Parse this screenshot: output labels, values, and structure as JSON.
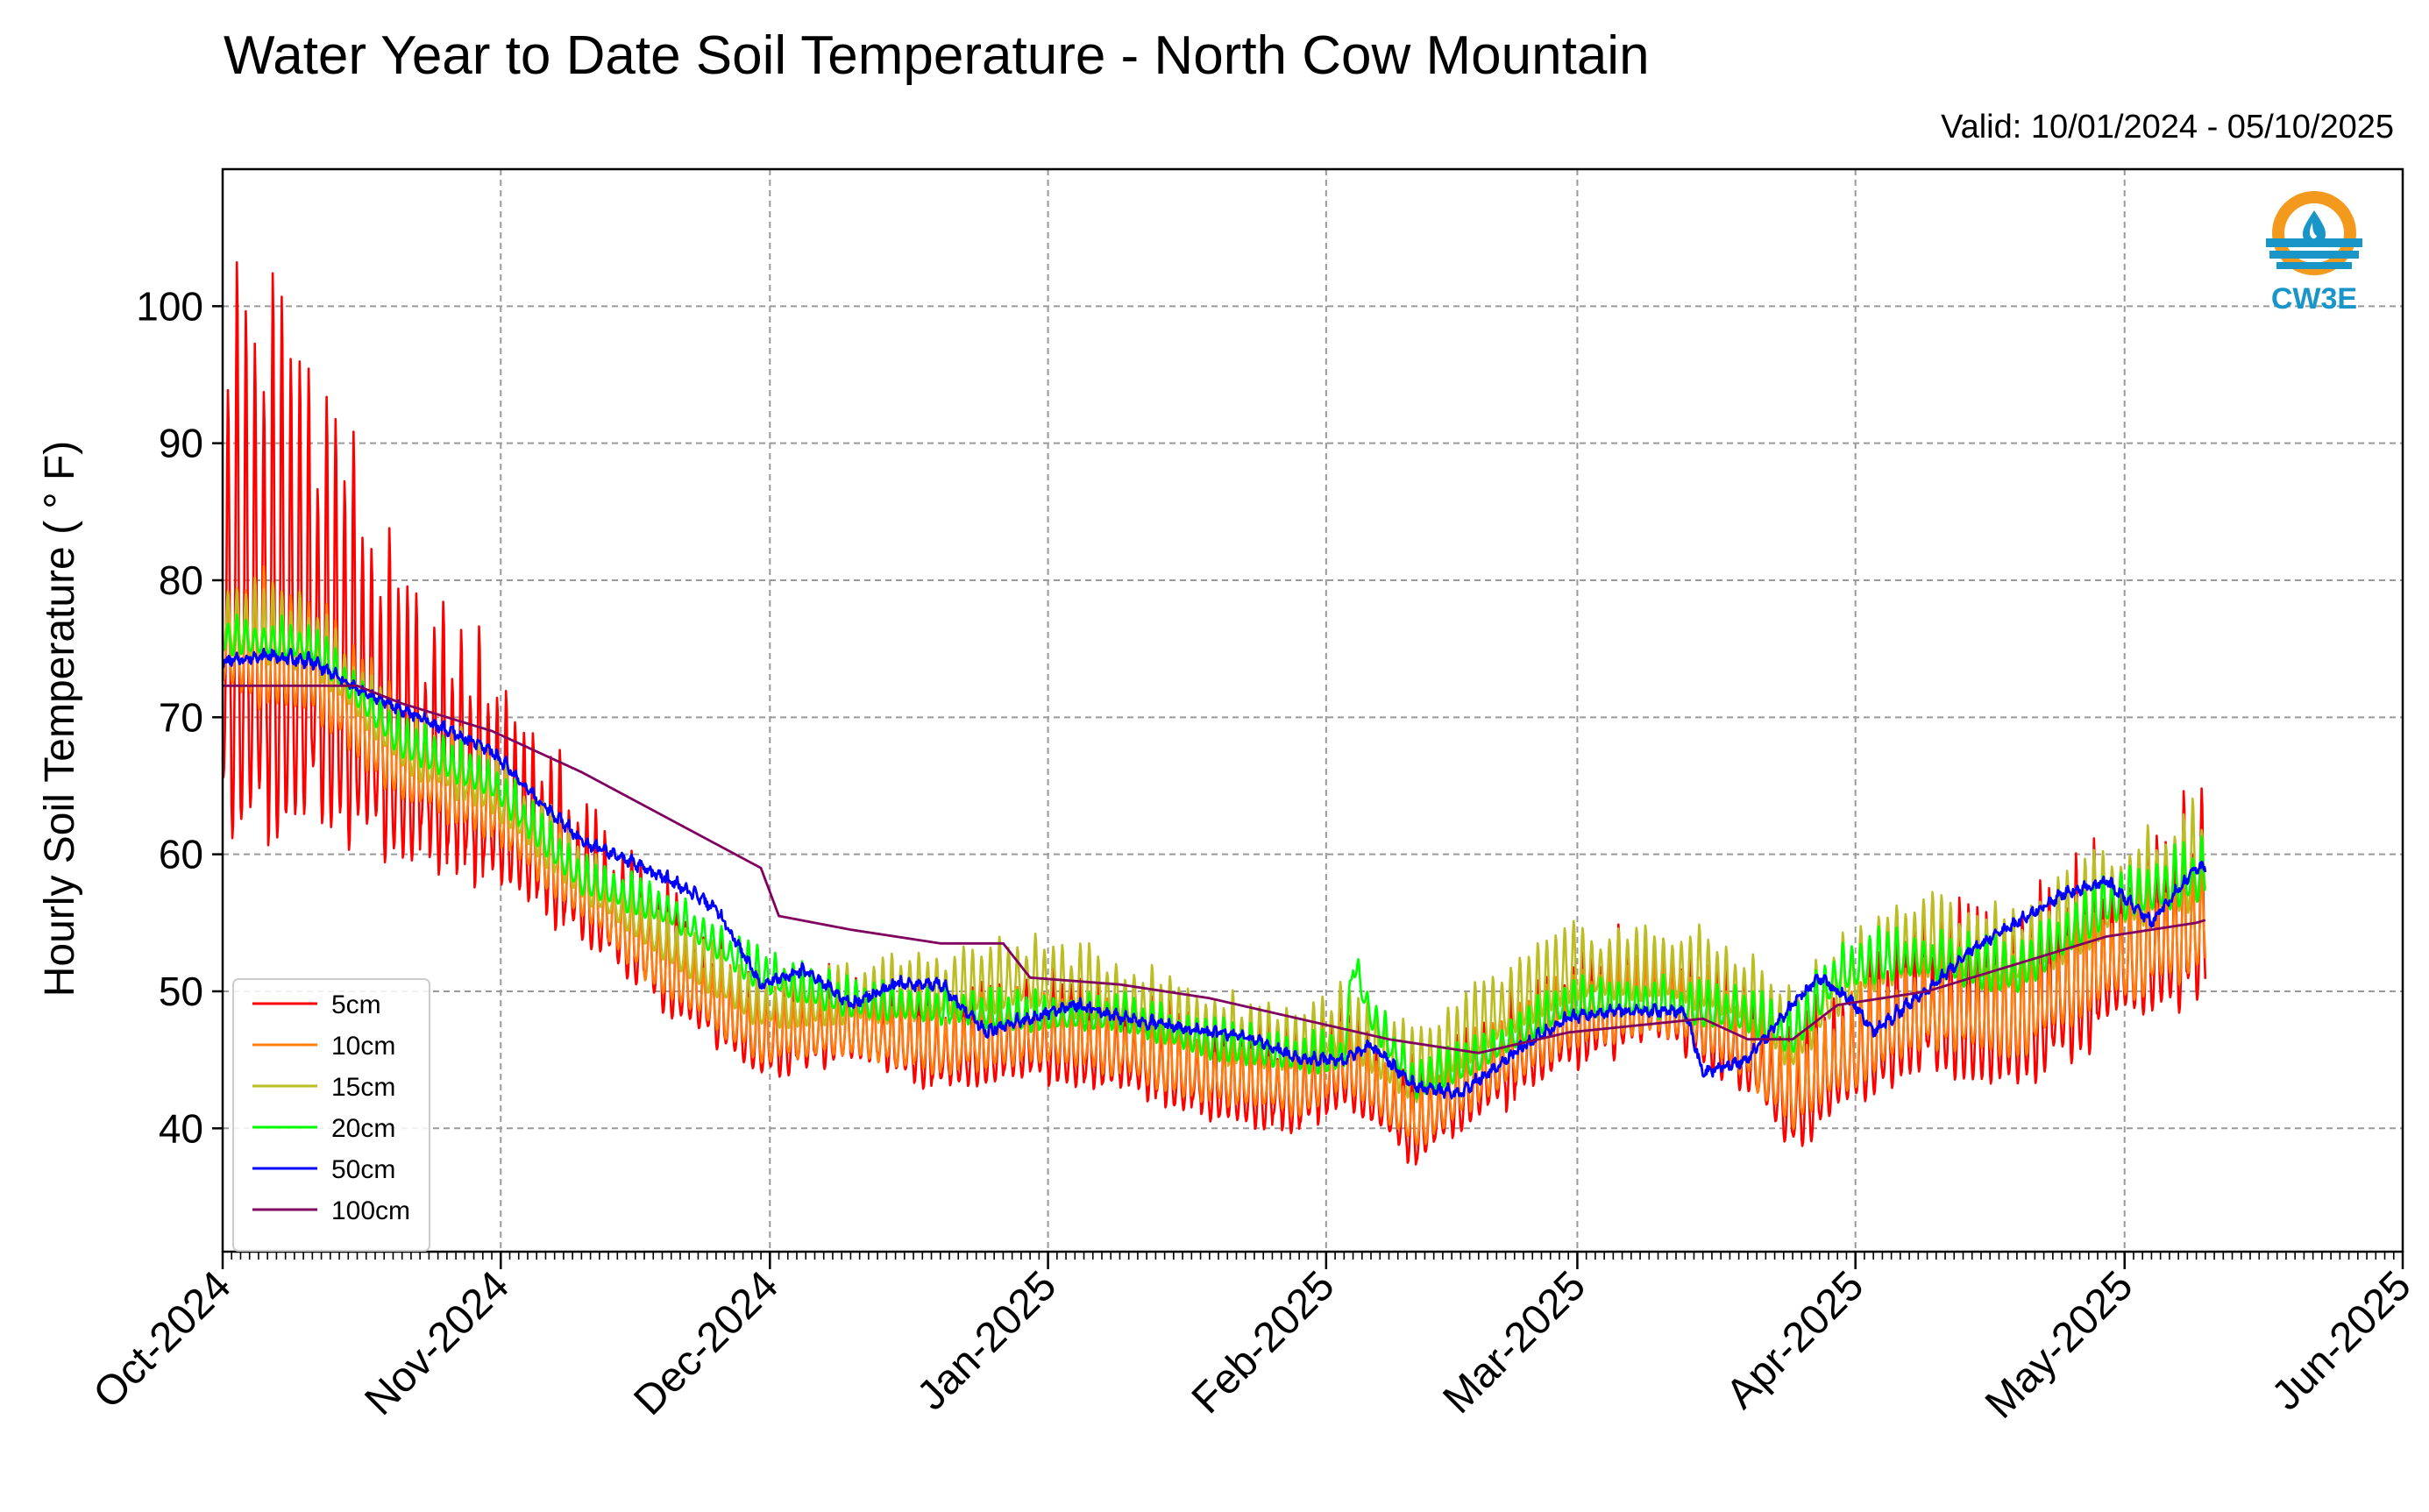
{
  "title": "Water Year to Date Soil Temperature - North Cow Mountain",
  "valid": "Valid: 10/01/2024 - 05/10/2025",
  "logo_text": "CW3E",
  "colors": {
    "background": "#ffffff",
    "grid": "#9a9a9a",
    "axis": "#000000",
    "logo_orange": "#f39a1e",
    "logo_blue": "#1a95c8"
  },
  "chart_data": {
    "type": "line",
    "title": "Water Year to Date Soil Temperature - North Cow Mountain",
    "subtitle": "Valid: 10/01/2024 - 05/10/2025",
    "xlabel": "",
    "ylabel": "Hourly Soil Temperature ( ° F)",
    "xlim": [
      "2024-10-01",
      "2025-06-01"
    ],
    "ylim": [
      31,
      110
    ],
    "x_ticks": [
      "2024-10-01",
      "2024-11-01",
      "2024-12-01",
      "2025-01-01",
      "2025-02-01",
      "2025-03-01",
      "2025-04-01",
      "2025-05-01",
      "2025-06-01"
    ],
    "x_tick_labels": [
      "Oct-2024",
      "Nov-2024",
      "Dec-2024",
      "Jan-2025",
      "Feb-2025",
      "Mar-2025",
      "Apr-2025",
      "May-2025",
      "Jun-2025"
    ],
    "y_ticks": [
      40,
      50,
      60,
      70,
      80,
      90,
      100
    ],
    "grid": true,
    "legend_position": "lower-left",
    "data_end": "2025-05-10",
    "series": [
      {
        "name": "5cm",
        "color": "#ff0000",
        "mean": [
          [
            0,
            74.5
          ],
          [
            10,
            73
          ],
          [
            20,
            66
          ],
          [
            30,
            63
          ],
          [
            40,
            57
          ],
          [
            50,
            51
          ],
          [
            60,
            46
          ],
          [
            70,
            47
          ],
          [
            80,
            45
          ],
          [
            90,
            46
          ],
          [
            100,
            45
          ],
          [
            110,
            43
          ],
          [
            120,
            42
          ],
          [
            125,
            44
          ],
          [
            133,
            39.5
          ],
          [
            140,
            43
          ],
          [
            150,
            47
          ],
          [
            160,
            49
          ],
          [
            165,
            47
          ],
          [
            170,
            45
          ],
          [
            175,
            41
          ],
          [
            180,
            44
          ],
          [
            185,
            46
          ],
          [
            190,
            48
          ],
          [
            200,
            47
          ],
          [
            210,
            51
          ],
          [
            220,
            54
          ],
          [
            230,
            61
          ],
          [
            240,
            64
          ]
        ],
        "amp": [
          [
            0,
            30
          ],
          [
            10,
            26
          ],
          [
            20,
            13
          ],
          [
            30,
            12
          ],
          [
            40,
            7
          ],
          [
            50,
            6
          ],
          [
            60,
            5
          ],
          [
            70,
            4.5
          ],
          [
            80,
            5
          ],
          [
            90,
            5.5
          ],
          [
            100,
            5
          ],
          [
            110,
            5
          ],
          [
            120,
            5
          ],
          [
            130,
            5
          ],
          [
            140,
            6
          ],
          [
            150,
            6
          ],
          [
            160,
            6
          ],
          [
            170,
            5
          ],
          [
            180,
            7
          ],
          [
            190,
            8
          ],
          [
            200,
            9
          ],
          [
            210,
            10
          ],
          [
            220,
            10
          ],
          [
            230,
            11
          ],
          [
            240,
            14
          ]
        ]
      },
      {
        "name": "10cm",
        "color": "#ff7f0e",
        "mean": [
          [
            0,
            74.5
          ],
          [
            10,
            73
          ],
          [
            20,
            66
          ],
          [
            30,
            63
          ],
          [
            40,
            57
          ],
          [
            50,
            51
          ],
          [
            60,
            46.5
          ],
          [
            70,
            47
          ],
          [
            80,
            45.5
          ],
          [
            90,
            46.5
          ],
          [
            100,
            45.5
          ],
          [
            110,
            43.5
          ],
          [
            120,
            42.5
          ],
          [
            125,
            44.5
          ],
          [
            133,
            40
          ],
          [
            140,
            43.5
          ],
          [
            150,
            47.5
          ],
          [
            160,
            49
          ],
          [
            165,
            47.5
          ],
          [
            170,
            45.5
          ],
          [
            175,
            42
          ],
          [
            180,
            44.5
          ],
          [
            185,
            46.5
          ],
          [
            190,
            48
          ],
          [
            200,
            47.5
          ],
          [
            210,
            51.5
          ],
          [
            220,
            54
          ],
          [
            230,
            60.5
          ],
          [
            240,
            63.5
          ]
        ],
        "amp": [
          [
            0,
            7
          ],
          [
            20,
            5
          ],
          [
            40,
            4
          ],
          [
            60,
            3.5
          ],
          [
            100,
            3.5
          ],
          [
            140,
            4
          ],
          [
            180,
            4.5
          ],
          [
            200,
            5
          ],
          [
            220,
            6
          ],
          [
            240,
            7
          ]
        ]
      },
      {
        "name": "15cm",
        "color": "#bcbd22",
        "mean": [
          [
            0,
            76.5
          ],
          [
            10,
            75
          ],
          [
            20,
            67.5
          ],
          [
            30,
            64.5
          ],
          [
            40,
            58
          ],
          [
            50,
            53
          ],
          [
            60,
            48.5
          ],
          [
            70,
            49
          ],
          [
            80,
            49.5
          ],
          [
            90,
            50.5
          ],
          [
            100,
            49
          ],
          [
            110,
            46.5
          ],
          [
            120,
            45.5
          ],
          [
            125,
            47
          ],
          [
            133,
            43.5
          ],
          [
            140,
            47
          ],
          [
            150,
            51
          ],
          [
            160,
            51
          ],
          [
            165,
            50.5
          ],
          [
            170,
            49
          ],
          [
            175,
            46
          ],
          [
            180,
            50
          ],
          [
            185,
            52
          ],
          [
            190,
            53
          ],
          [
            200,
            52
          ],
          [
            210,
            56
          ],
          [
            220,
            58.5
          ],
          [
            230,
            60.5
          ],
          [
            240,
            64.5
          ]
        ],
        "amp": [
          [
            0,
            4
          ],
          [
            20,
            3.5
          ],
          [
            40,
            3
          ],
          [
            60,
            2.5
          ],
          [
            80,
            3.5
          ],
          [
            100,
            3.5
          ],
          [
            140,
            3.5
          ],
          [
            180,
            4
          ],
          [
            200,
            4
          ],
          [
            220,
            5
          ],
          [
            240,
            7
          ]
        ]
      },
      {
        "name": "20cm",
        "color": "#00ff00",
        "mean": [
          [
            0,
            75.5
          ],
          [
            10,
            75
          ],
          [
            20,
            68
          ],
          [
            30,
            65
          ],
          [
            40,
            58
          ],
          [
            50,
            55.5
          ],
          [
            60,
            51
          ],
          [
            70,
            49
          ],
          [
            80,
            48.5
          ],
          [
            90,
            48
          ],
          [
            100,
            48
          ],
          [
            110,
            46
          ],
          [
            120,
            45
          ],
          [
            125,
            45
          ],
          [
            126,
            52
          ],
          [
            128,
            48
          ],
          [
            133,
            43
          ],
          [
            140,
            45
          ],
          [
            150,
            49
          ],
          [
            160,
            49
          ],
          [
            165,
            48.5
          ],
          [
            170,
            48
          ],
          [
            175,
            46.5
          ],
          [
            180,
            51
          ],
          [
            185,
            52
          ],
          [
            190,
            52
          ],
          [
            200,
            51
          ],
          [
            210,
            56
          ],
          [
            220,
            58
          ],
          [
            230,
            58.5
          ],
          [
            240,
            62.5
          ]
        ],
        "amp": [
          [
            0,
            2
          ],
          [
            40,
            2
          ],
          [
            80,
            2
          ],
          [
            120,
            2
          ],
          [
            160,
            2
          ],
          [
            180,
            2.5
          ],
          [
            200,
            2.5
          ],
          [
            240,
            3.5
          ]
        ]
      },
      {
        "name": "50cm",
        "color": "#0000ff",
        "mean": [
          [
            0,
            74
          ],
          [
            5,
            74.5
          ],
          [
            10,
            74
          ],
          [
            15,
            72
          ],
          [
            20,
            70.5
          ],
          [
            30,
            67.5
          ],
          [
            35,
            64
          ],
          [
            40,
            61
          ],
          [
            50,
            58
          ],
          [
            55,
            56
          ],
          [
            60,
            50.5
          ],
          [
            65,
            51.5
          ],
          [
            70,
            49
          ],
          [
            75,
            50.5
          ],
          [
            80,
            50.5
          ],
          [
            85,
            47
          ],
          [
            90,
            48
          ],
          [
            95,
            49
          ],
          [
            100,
            48
          ],
          [
            110,
            47
          ],
          [
            115,
            46.5
          ],
          [
            120,
            45
          ],
          [
            125,
            45
          ],
          [
            128,
            46
          ],
          [
            133,
            43
          ],
          [
            138,
            42.5
          ],
          [
            140,
            43.5
          ],
          [
            145,
            46
          ],
          [
            150,
            48
          ],
          [
            155,
            48.5
          ],
          [
            160,
            48.5
          ],
          [
            163,
            48.5
          ],
          [
            165,
            44
          ],
          [
            170,
            45
          ],
          [
            175,
            49
          ],
          [
            178,
            51
          ],
          [
            182,
            49
          ],
          [
            184,
            47
          ],
          [
            190,
            50
          ],
          [
            195,
            53
          ],
          [
            200,
            55
          ],
          [
            205,
            57
          ],
          [
            210,
            58
          ],
          [
            215,
            55
          ],
          [
            220,
            59
          ],
          [
            225,
            58.5
          ],
          [
            230,
            60.5
          ],
          [
            231,
            61
          ]
        ],
        "amp": [
          [
            0,
            0.4
          ],
          [
            240,
            0.4
          ]
        ]
      },
      {
        "name": "100cm",
        "color": "#800060",
        "mean": [
          [
            0,
            72.3
          ],
          [
            15,
            72.3
          ],
          [
            20,
            71
          ],
          [
            30,
            69
          ],
          [
            40,
            66
          ],
          [
            50,
            62.5
          ],
          [
            60,
            59
          ],
          [
            62,
            55.5
          ],
          [
            70,
            54.5
          ],
          [
            80,
            53.5
          ],
          [
            87,
            53.5
          ],
          [
            90,
            51
          ],
          [
            100,
            50.5
          ],
          [
            110,
            49.5
          ],
          [
            120,
            48
          ],
          [
            130,
            46.5
          ],
          [
            140,
            45.5
          ],
          [
            150,
            47
          ],
          [
            165,
            48
          ],
          [
            170,
            46.5
          ],
          [
            175,
            46.5
          ],
          [
            180,
            49
          ],
          [
            190,
            50
          ],
          [
            200,
            52
          ],
          [
            210,
            54
          ],
          [
            220,
            55
          ],
          [
            230,
            57
          ],
          [
            231,
            57
          ]
        ],
        "amp": [
          [
            0,
            0
          ],
          [
            240,
            0
          ]
        ]
      }
    ]
  }
}
